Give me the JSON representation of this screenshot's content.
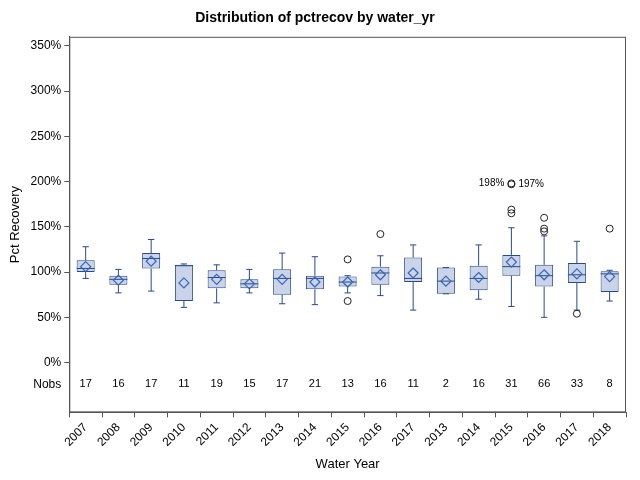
{
  "chart_data": {
    "type": "box",
    "title": "Distribution of pctrecov by water_yr",
    "x_label": "Water Year",
    "y_label": "Pct Recovery",
    "categories": [
      "2007",
      "2008",
      "2009",
      "2010",
      "2011",
      "2012",
      "2013",
      "2014",
      "2015",
      "2016",
      "2017",
      "2013",
      "2014",
      "2015",
      "2016",
      "2017",
      "2018"
    ],
    "q1": [
      100,
      86,
      104,
      68,
      82,
      82,
      75,
      81,
      84,
      86,
      89,
      76,
      80,
      96,
      84,
      88,
      78
    ],
    "median": [
      104,
      92,
      115,
      107,
      94,
      87,
      93,
      93,
      89,
      99,
      93,
      90,
      93,
      106,
      96,
      97,
      98
    ],
    "q3": [
      113,
      96,
      121,
      108,
      102,
      92,
      103,
      96,
      95,
      106,
      116,
      105,
      107,
      119,
      108,
      110,
      101
    ],
    "whisker_low": [
      93,
      77,
      79,
      61,
      66,
      77,
      65,
      64,
      77,
      74,
      58,
      76,
      70,
      62,
      50,
      58,
      68
    ],
    "whisker_high": [
      128,
      103,
      136,
      109,
      108,
      103,
      121,
      117,
      96,
      118,
      130,
      105,
      130,
      149,
      140,
      134,
      102
    ],
    "mean": [
      106,
      91,
      112,
      88,
      92,
      87,
      92,
      89,
      89,
      97,
      99,
      90,
      94,
      111,
      97,
      98,
      95
    ],
    "outliers": [
      [],
      [],
      [],
      [],
      [],
      [],
      [],
      [],
      [
        114,
        68
      ],
      [
        142
      ],
      [],
      [],
      [],
      [
        165,
        169,
        {
          "value": 198,
          "label": "198%"
        },
        {
          "value": 197,
          "label": "197%"
        }
      ],
      [
        145,
        148,
        160
      ],
      [
        54
      ],
      [
        148
      ]
    ],
    "nobs_label": "Nobs",
    "nobs": [
      17,
      16,
      17,
      11,
      19,
      15,
      17,
      21,
      13,
      16,
      11,
      2,
      16,
      31,
      66,
      33,
      8
    ],
    "color": "#c9d3ea",
    "ylim": [
      -55,
      360
    ],
    "yticks": [
      {
        "value": 0,
        "label": "0%"
      },
      {
        "value": 50,
        "label": "50%"
      },
      {
        "value": 100,
        "label": "100%"
      },
      {
        "value": 150,
        "label": "150%"
      },
      {
        "value": 200,
        "label": "200%"
      },
      {
        "value": 250,
        "label": "250%"
      },
      {
        "value": 300,
        "label": "300%"
      },
      {
        "value": 350,
        "label": "350%"
      }
    ],
    "grid": false
  }
}
